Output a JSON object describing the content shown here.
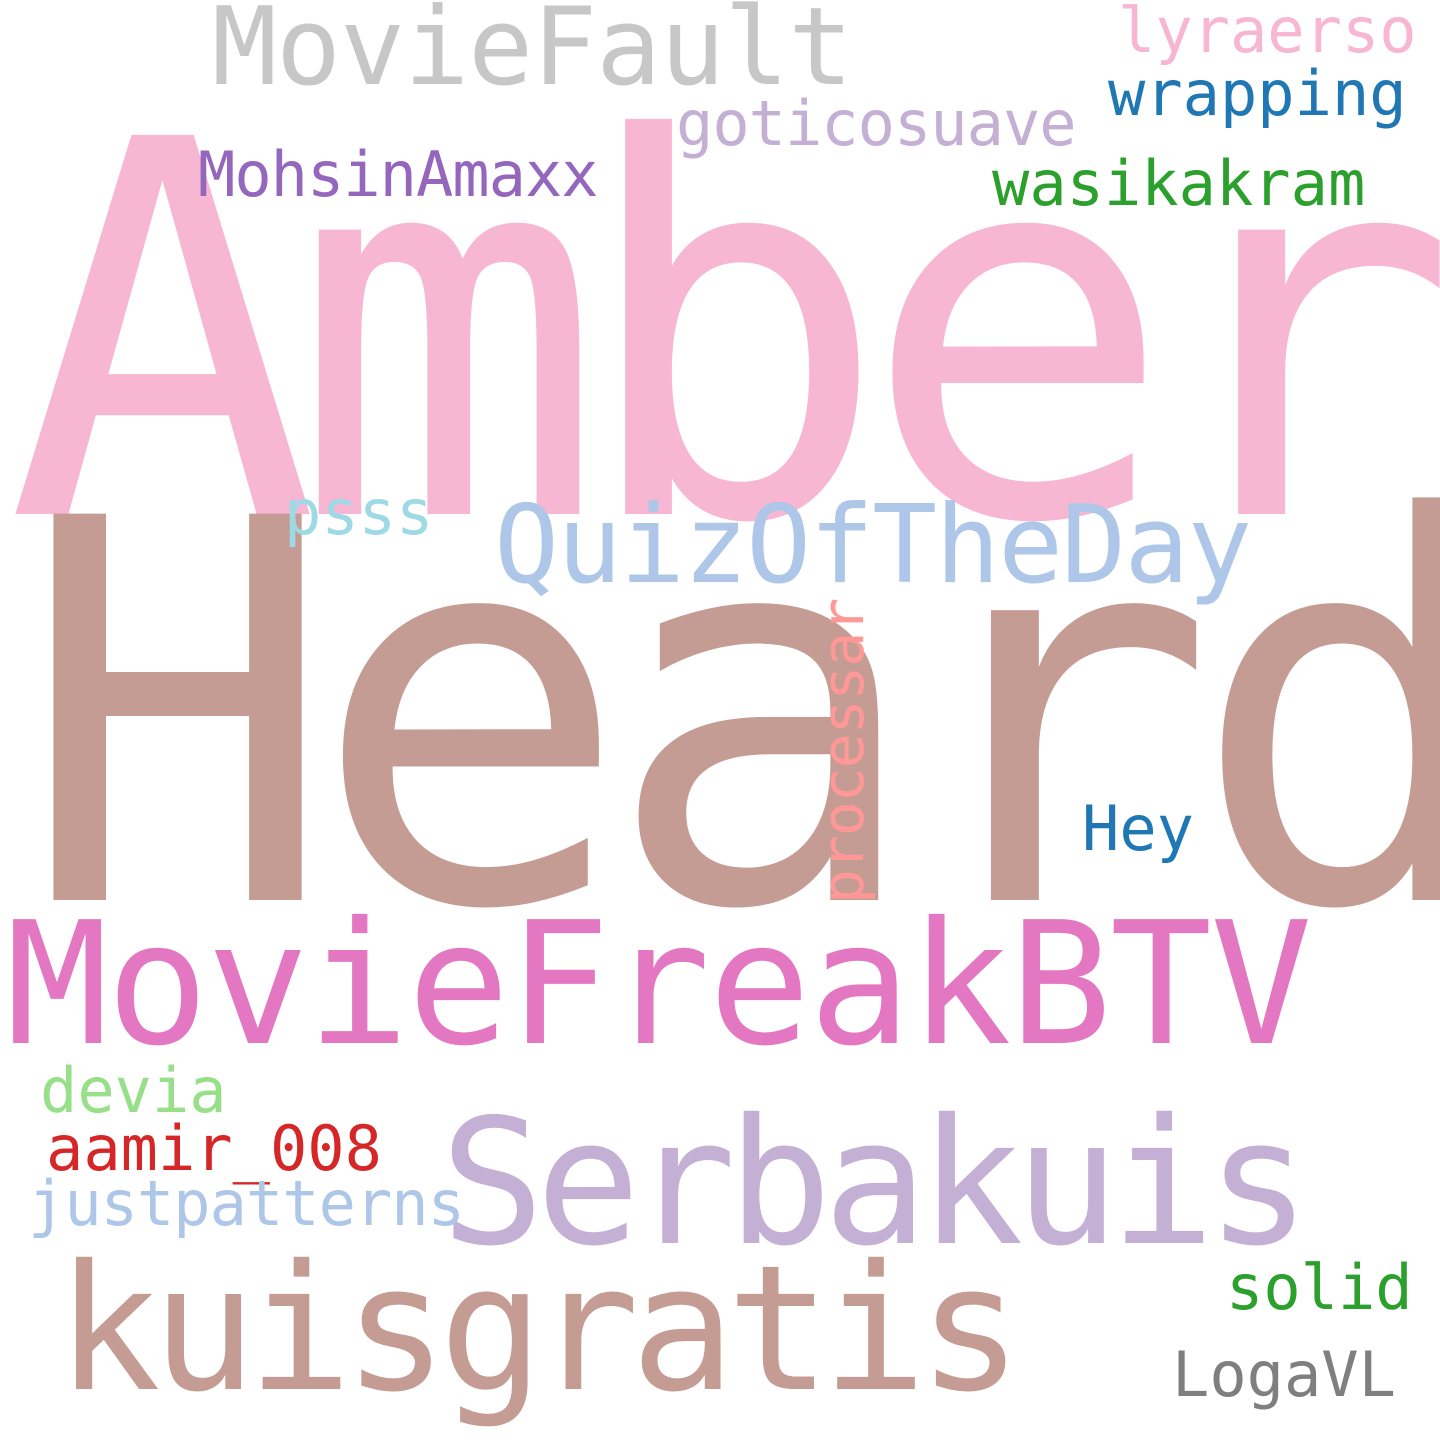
{
  "background": "#ffffff",
  "words": [
    {
      "id": "amber",
      "text": "Amber",
      "color": "#f7b6d2"
    },
    {
      "id": "heard",
      "text": "Heard",
      "color": "#c49c94"
    },
    {
      "id": "moviefreakbtv",
      "text": "MovieFreakBTV",
      "color": "#e377c2"
    },
    {
      "id": "serbakuis",
      "text": "Serbakuis",
      "color": "#c5b0d5"
    },
    {
      "id": "kuisgratis",
      "text": "kuisgratis",
      "color": "#c49c94"
    },
    {
      "id": "moviefault",
      "text": "MovieFault",
      "color": "#c7c7c7"
    },
    {
      "id": "quizoftheday",
      "text": "QuizOfTheDay",
      "color": "#aec7e8"
    },
    {
      "id": "goticosuave",
      "text": "goticosuave",
      "color": "#c5b0d5"
    },
    {
      "id": "lyraerso",
      "text": "lyraerso",
      "color": "#f7b6d2"
    },
    {
      "id": "wrapping",
      "text": "wrapping",
      "color": "#1f77b4"
    },
    {
      "id": "mohsinamaxx",
      "text": "MohsinAmaxx",
      "color": "#9467bd"
    },
    {
      "id": "wasikakram",
      "text": "wasikakram",
      "color": "#2ca02c"
    },
    {
      "id": "psss",
      "text": "psss",
      "color": "#9edae5"
    },
    {
      "id": "processar",
      "text": "processar",
      "color": "#ff9896"
    },
    {
      "id": "hey",
      "text": "Hey",
      "color": "#1f77b4"
    },
    {
      "id": "devia",
      "text": "devia",
      "color": "#98df8a"
    },
    {
      "id": "aamir_008",
      "text": "aamir_008",
      "color": "#d62728"
    },
    {
      "id": "justpatterns",
      "text": "justpatterns",
      "color": "#aec7e8"
    },
    {
      "id": "solid",
      "text": "solid",
      "color": "#2ca02c"
    },
    {
      "id": "logavl",
      "text": "LogaVL",
      "color": "#7f7f7f"
    }
  ]
}
